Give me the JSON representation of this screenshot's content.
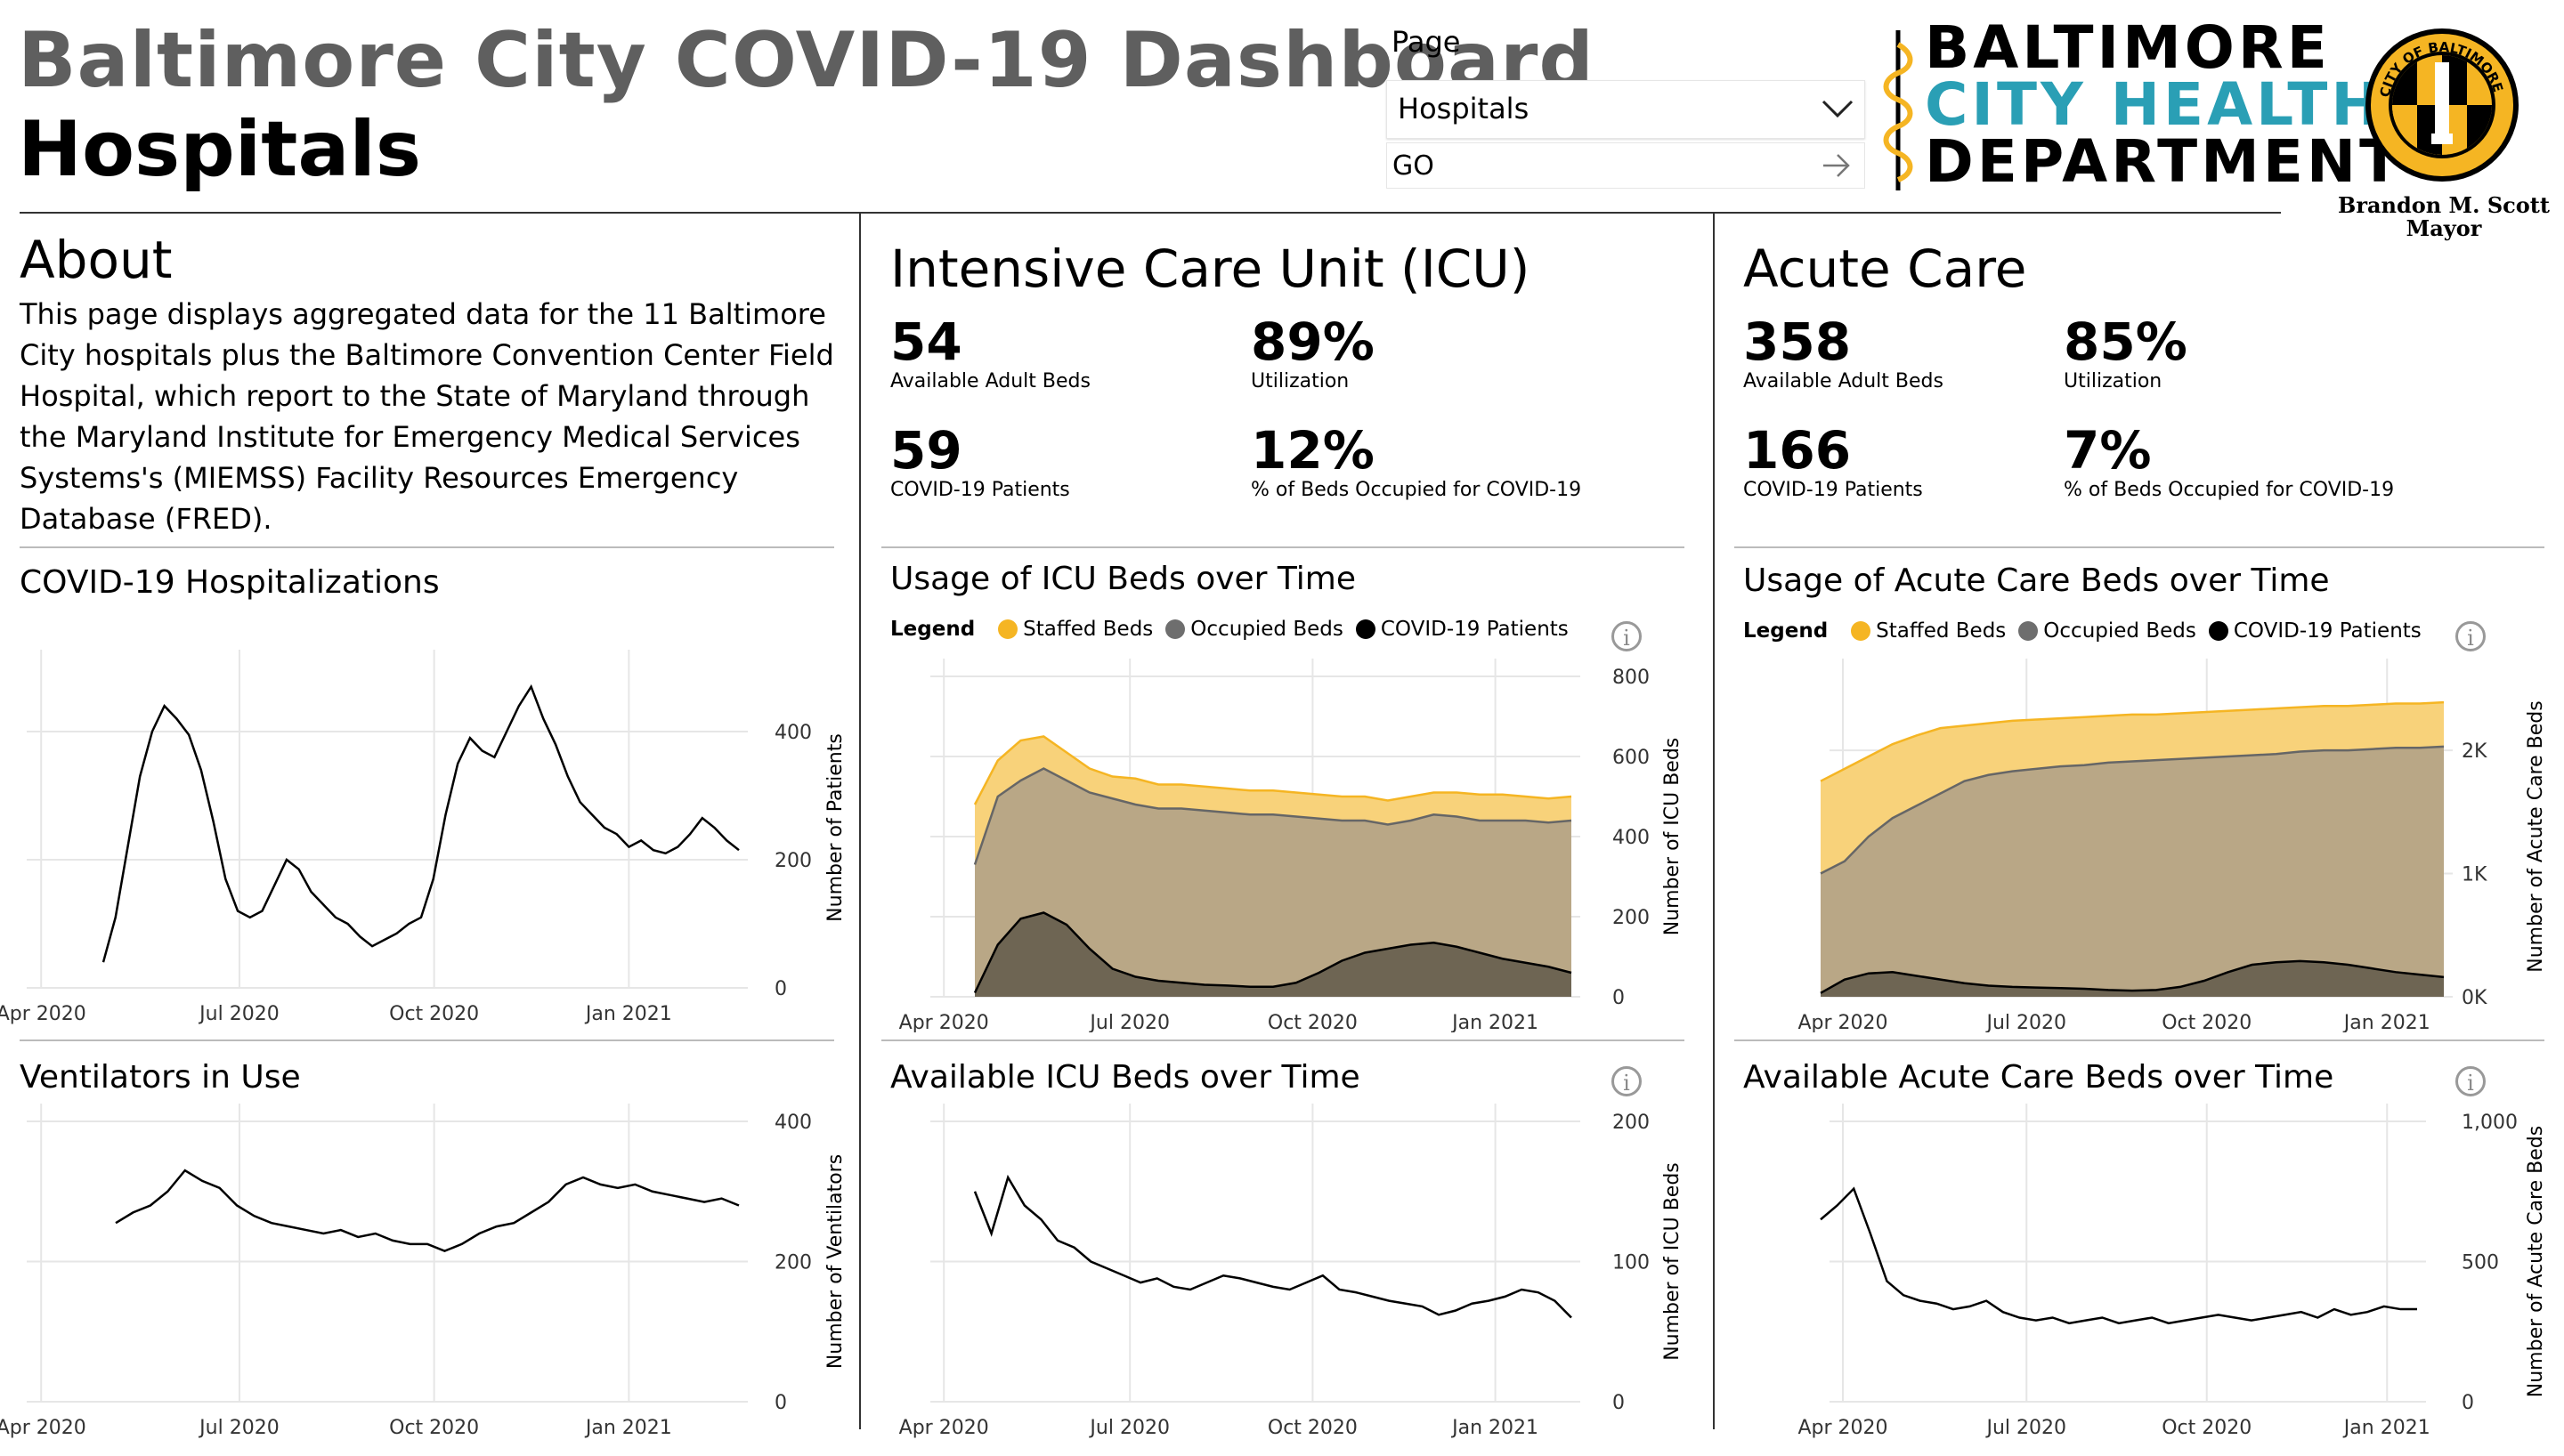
{
  "header": {
    "title": "Baltimore City COVID-19 Dashboard",
    "subtitle": "Hospitals",
    "page_label": "Page",
    "page_select": "Hospitals",
    "go_label": "GO",
    "logo_lines": [
      "BALTIMORE",
      "CITY HEALTH",
      "DEPARTMENT"
    ],
    "seal_text": "CITY OF BALTIMORE",
    "mayor_name": "Brandon M. Scott",
    "mayor_title": "Mayor"
  },
  "about": {
    "title": "About",
    "text": "This page displays aggregated data for the 11 Baltimore City hospitals plus the Baltimore Convention Center Field Hospital, which report to the State of Maryland through the Maryland Institute for Emergency Medical Services Systems's (MIEMSS) Facility Resources Emergency Database (FRED)."
  },
  "icu": {
    "title": "Intensive Care Unit (ICU)",
    "kpis": [
      {
        "value": "54",
        "label": "Available Adult Beds"
      },
      {
        "value": "89%",
        "label": "Utilization"
      },
      {
        "value": "59",
        "label": "COVID-19 Patients"
      },
      {
        "value": "12%",
        "label": "% of Beds Occupied for COVID-19"
      }
    ]
  },
  "acute": {
    "title": "Acute Care",
    "kpis": [
      {
        "value": "358",
        "label": "Available Adult Beds"
      },
      {
        "value": "85%",
        "label": "Utilization"
      },
      {
        "value": "166",
        "label": "COVID-19 Patients"
      },
      {
        "value": "7%",
        "label": "% of Beds Occupied for COVID-19"
      }
    ]
  },
  "legend": {
    "label": "Legend",
    "items": [
      {
        "name": "Staffed Beds",
        "color": "#f5b523"
      },
      {
        "name": "Occupied Beds",
        "color": "#6e6e6e"
      },
      {
        "name": "COVID-19 Patients",
        "color": "#000000"
      }
    ]
  },
  "colors": {
    "staffed_fill": "#f8d27a",
    "staffed_line": "#f5b523",
    "occupied_fill": "#b9a786",
    "occupied_line": "#666666",
    "covid_fill": "#6e6553"
  },
  "chart_data": [
    {
      "id": "hosp",
      "type": "line",
      "title": "COVID-19 Hospitalizations",
      "ylabel": "Number of Patients",
      "ylim": [
        0,
        500
      ],
      "yticks": [
        0,
        200,
        400
      ],
      "xticks": [
        "Apr 2020",
        "Jul 2020",
        "Oct 2020",
        "Jan 2021"
      ],
      "x": [
        "Mar 27",
        "Apr 1",
        "Apr 8",
        "Apr 15",
        "Apr 22",
        "Apr 29",
        "May 6",
        "May 13",
        "May 20",
        "May 27",
        "Jun 3",
        "Jun 10",
        "Jun 17",
        "Jun 24",
        "Jul 1",
        "Jul 8",
        "Jul 15",
        "Jul 22",
        "Jul 29",
        "Aug 5",
        "Aug 12",
        "Aug 19",
        "Aug 26",
        "Sep 2",
        "Sep 9",
        "Sep 16",
        "Sep 23",
        "Sep 30",
        "Oct 7",
        "Oct 14",
        "Oct 21",
        "Oct 28",
        "Nov 4",
        "Nov 11",
        "Nov 18",
        "Nov 25",
        "Dec 2",
        "Dec 9",
        "Dec 16",
        "Dec 23",
        "Dec 30",
        "Jan 6",
        "Jan 13",
        "Jan 20",
        "Jan 27",
        "Feb 3",
        "Feb 10",
        "Feb 17",
        "Feb 24",
        "Mar 3",
        "Mar 10",
        "Mar 17",
        "Mar 24"
      ],
      "values": [
        40,
        110,
        220,
        330,
        400,
        440,
        420,
        395,
        340,
        260,
        170,
        120,
        110,
        120,
        160,
        200,
        185,
        150,
        130,
        110,
        100,
        80,
        65,
        75,
        85,
        100,
        110,
        170,
        270,
        350,
        390,
        370,
        360,
        400,
        440,
        470,
        420,
        380,
        330,
        290,
        270,
        250,
        240,
        220,
        230,
        215,
        210,
        220,
        240,
        265,
        250,
        230,
        215
      ]
    },
    {
      "id": "vent",
      "type": "line",
      "title": "Ventilators in Use",
      "ylabel": "Number of Ventilators",
      "ylim": [
        0,
        400
      ],
      "yticks": [
        0,
        200,
        400
      ],
      "xticks": [
        "Apr 2020",
        "Jul 2020",
        "Oct 2020",
        "Jan 2021"
      ],
      "x": [
        "Mar 27",
        "Apr 5",
        "Apr 15",
        "Apr 25",
        "May 5",
        "May 15",
        "May 25",
        "Jun 5",
        "Jun 15",
        "Jun 25",
        "Jul 5",
        "Jul 15",
        "Jul 25",
        "Aug 5",
        "Aug 15",
        "Aug 25",
        "Sep 5",
        "Sep 15",
        "Sep 25",
        "Oct 5",
        "Oct 15",
        "Oct 25",
        "Nov 5",
        "Nov 15",
        "Nov 25",
        "Dec 5",
        "Dec 15",
        "Dec 25",
        "Jan 5",
        "Jan 15",
        "Jan 25",
        "Feb 5",
        "Feb 15",
        "Feb 25",
        "Mar 5",
        "Mar 15",
        "Mar 24"
      ],
      "values": [
        255,
        270,
        280,
        300,
        330,
        315,
        305,
        280,
        265,
        255,
        250,
        245,
        240,
        245,
        235,
        240,
        230,
        225,
        225,
        215,
        225,
        240,
        250,
        255,
        270,
        285,
        310,
        320,
        310,
        305,
        310,
        300,
        295,
        290,
        285,
        290,
        280
      ]
    },
    {
      "id": "icu-usage",
      "type": "area",
      "title": "Usage of ICU Beds over Time",
      "ylabel": "Number of ICU Beds",
      "ylim": [
        0,
        800
      ],
      "yticks": [
        0,
        200,
        400,
        600,
        800
      ],
      "xticks": [
        "Apr 2020",
        "Jul 2020",
        "Oct 2020",
        "Jan 2021"
      ],
      "x": [
        "Mar 27",
        "Apr 10",
        "Apr 24",
        "May 8",
        "May 22",
        "Jun 5",
        "Jun 19",
        "Jul 3",
        "Jul 17",
        "Jul 31",
        "Aug 14",
        "Aug 28",
        "Sep 11",
        "Sep 25",
        "Oct 9",
        "Oct 23",
        "Nov 6",
        "Nov 20",
        "Dec 4",
        "Dec 18",
        "Jan 1",
        "Jan 15",
        "Jan 29",
        "Feb 12",
        "Feb 26",
        "Mar 12",
        "Mar 24"
      ],
      "series": [
        {
          "name": "Staffed Beds",
          "values": [
            480,
            590,
            640,
            650,
            610,
            570,
            550,
            545,
            530,
            530,
            525,
            520,
            515,
            515,
            510,
            505,
            500,
            500,
            490,
            500,
            510,
            510,
            505,
            505,
            500,
            495,
            500
          ]
        },
        {
          "name": "Occupied Beds",
          "values": [
            330,
            500,
            540,
            570,
            540,
            510,
            495,
            480,
            470,
            470,
            465,
            460,
            455,
            455,
            450,
            445,
            440,
            440,
            430,
            440,
            455,
            450,
            440,
            440,
            440,
            435,
            440
          ]
        },
        {
          "name": "COVID-19 Patients",
          "values": [
            10,
            130,
            195,
            210,
            180,
            120,
            70,
            50,
            40,
            35,
            30,
            28,
            25,
            25,
            35,
            60,
            90,
            110,
            120,
            130,
            135,
            125,
            110,
            95,
            85,
            75,
            60
          ]
        }
      ]
    },
    {
      "id": "icu-avail",
      "type": "line",
      "title": "Available ICU Beds over Time",
      "ylabel": "Number of ICU Beds",
      "ylim": [
        0,
        200
      ],
      "yticks": [
        0,
        100,
        200
      ],
      "xticks": [
        "Apr 2020",
        "Jul 2020",
        "Oct 2020",
        "Jan 2021"
      ],
      "x": [
        "Mar 27",
        "Apr 5",
        "Apr 15",
        "Apr 25",
        "May 5",
        "May 15",
        "May 25",
        "Jun 5",
        "Jun 15",
        "Jun 25",
        "Jul 5",
        "Jul 15",
        "Jul 25",
        "Aug 5",
        "Aug 15",
        "Aug 25",
        "Sep 5",
        "Sep 15",
        "Sep 25",
        "Oct 5",
        "Oct 15",
        "Oct 25",
        "Nov 5",
        "Nov 15",
        "Nov 25",
        "Dec 5",
        "Dec 15",
        "Dec 25",
        "Jan 5",
        "Jan 15",
        "Jan 25",
        "Feb 5",
        "Feb 15",
        "Feb 25",
        "Mar 5",
        "Mar 15",
        "Mar 24"
      ],
      "values": [
        150,
        120,
        160,
        140,
        130,
        115,
        110,
        100,
        95,
        90,
        85,
        88,
        82,
        80,
        85,
        90,
        88,
        85,
        82,
        80,
        85,
        90,
        80,
        78,
        75,
        72,
        70,
        68,
        62,
        65,
        70,
        72,
        75,
        80,
        78,
        72,
        60
      ]
    },
    {
      "id": "acute-usage",
      "type": "area",
      "title": "Usage of Acute Care Beds over Time",
      "ylabel": "Number of Acute Care Beds",
      "ylim": [
        0,
        2600
      ],
      "yticks": [
        0,
        1000,
        2000
      ],
      "ytick_labels": [
        "0K",
        "1K",
        "2K"
      ],
      "xticks": [
        "Apr 2020",
        "Jul 2020",
        "Oct 2020",
        "Jan 2021"
      ],
      "x": [
        "Mar 27",
        "Apr 10",
        "Apr 24",
        "May 8",
        "May 22",
        "Jun 5",
        "Jun 19",
        "Jul 3",
        "Jul 17",
        "Jul 31",
        "Aug 14",
        "Aug 28",
        "Sep 11",
        "Sep 25",
        "Oct 9",
        "Oct 23",
        "Nov 6",
        "Nov 20",
        "Dec 4",
        "Dec 18",
        "Jan 1",
        "Jan 15",
        "Jan 29",
        "Feb 12",
        "Feb 26",
        "Mar 12",
        "Mar 24"
      ],
      "series": [
        {
          "name": "Staffed Beds",
          "values": [
            1750,
            1850,
            1950,
            2050,
            2120,
            2180,
            2200,
            2220,
            2240,
            2250,
            2260,
            2270,
            2280,
            2290,
            2290,
            2300,
            2310,
            2320,
            2330,
            2340,
            2350,
            2360,
            2360,
            2370,
            2380,
            2380,
            2390
          ]
        },
        {
          "name": "Occupied Beds",
          "values": [
            1000,
            1100,
            1300,
            1450,
            1550,
            1650,
            1750,
            1800,
            1830,
            1850,
            1870,
            1880,
            1900,
            1910,
            1920,
            1930,
            1940,
            1950,
            1960,
            1970,
            1990,
            2000,
            2000,
            2010,
            2020,
            2020,
            2030
          ]
        },
        {
          "name": "COVID-19 Patients",
          "values": [
            30,
            140,
            190,
            200,
            170,
            140,
            110,
            90,
            80,
            75,
            70,
            65,
            55,
            50,
            55,
            80,
            130,
            200,
            260,
            280,
            290,
            280,
            260,
            230,
            200,
            180,
            160
          ]
        }
      ]
    },
    {
      "id": "acute-avail",
      "type": "line",
      "title": "Available Acute Care Beds over Time",
      "ylabel": "Number of Acute Care Beds",
      "ylim": [
        0,
        1000
      ],
      "yticks": [
        0,
        500,
        1000
      ],
      "ytick_labels": [
        "0",
        "500",
        "1,000"
      ],
      "xticks": [
        "Apr 2020",
        "Jul 2020",
        "Oct 2020",
        "Jan 2021"
      ],
      "x": [
        "Mar 27",
        "Apr 5",
        "Apr 15",
        "Apr 25",
        "May 5",
        "May 15",
        "May 25",
        "Jun 5",
        "Jun 15",
        "Jun 25",
        "Jul 5",
        "Jul 15",
        "Jul 25",
        "Aug 5",
        "Aug 15",
        "Aug 25",
        "Sep 5",
        "Sep 15",
        "Sep 25",
        "Oct 5",
        "Oct 15",
        "Oct 25",
        "Nov 5",
        "Nov 15",
        "Nov 25",
        "Dec 5",
        "Dec 15",
        "Dec 25",
        "Jan 5",
        "Jan 15",
        "Jan 25",
        "Feb 5",
        "Feb 15",
        "Feb 25",
        "Mar 5",
        "Mar 15",
        "Mar 24"
      ],
      "values": [
        650,
        700,
        760,
        600,
        430,
        380,
        360,
        350,
        330,
        340,
        360,
        320,
        300,
        290,
        300,
        280,
        290,
        300,
        280,
        290,
        300,
        280,
        290,
        300,
        310,
        300,
        290,
        300,
        310,
        320,
        300,
        330,
        310,
        320,
        340,
        330,
        330
      ]
    }
  ]
}
